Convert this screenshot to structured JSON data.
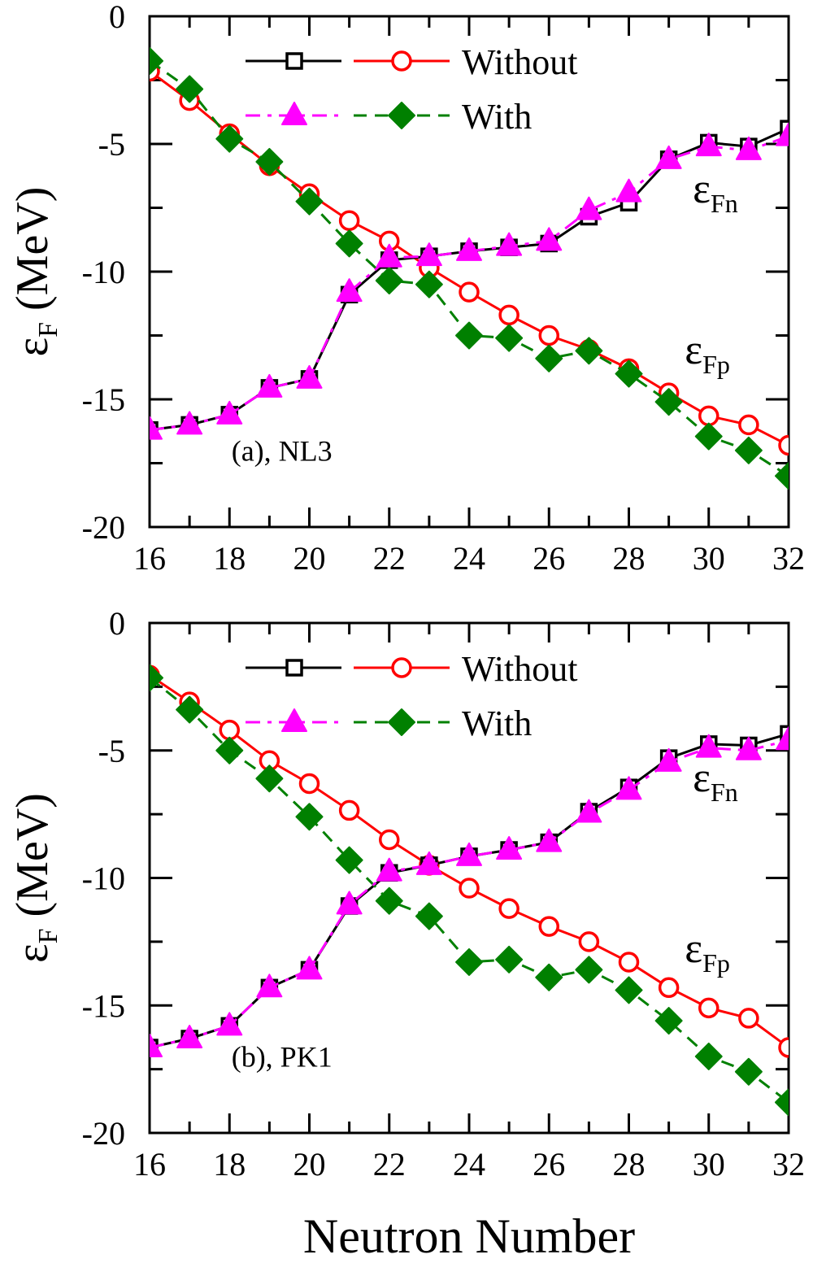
{
  "chart_data": [
    {
      "type": "line",
      "panel_label": "(a), NL3",
      "xlabel": "Neutron Number",
      "ylabel_main": "ε",
      "ylabel_sub": "F",
      "ylabel_unit": " (MeV)",
      "xlim": [
        16,
        32
      ],
      "ylim": [
        -20,
        0
      ],
      "xticks": [
        16,
        18,
        20,
        22,
        24,
        26,
        28,
        30,
        32
      ],
      "yticks": [
        0,
        -5,
        -10,
        -15,
        -20
      ],
      "grid": false,
      "legend_position": "top-right",
      "legend": [
        {
          "label": "Without",
          "series": [
            "eFn_without",
            "eFp_without"
          ]
        },
        {
          "label": "With",
          "series": [
            "eFn_with",
            "eFp_with"
          ]
        }
      ],
      "annotations": [
        {
          "main": "ε",
          "sub": "Fn",
          "x": 29.6,
          "y": -7.3
        },
        {
          "main": "ε",
          "sub": "Fp",
          "x": 29.4,
          "y": -13.6
        }
      ],
      "x": [
        16,
        17,
        18,
        19,
        20,
        21,
        22,
        23,
        24,
        25,
        26,
        27,
        28,
        29,
        30,
        31,
        32
      ],
      "series": [
        {
          "id": "eFn_without",
          "name": "εFn Without",
          "color": "#000000",
          "marker": "square",
          "line": "solid",
          "values": [
            -16.2,
            -16.0,
            -15.6,
            -14.55,
            -14.2,
            -10.9,
            -9.55,
            -9.4,
            -9.2,
            -9.05,
            -8.9,
            -7.85,
            -7.3,
            -5.6,
            -4.95,
            -5.1,
            -4.4
          ]
        },
        {
          "id": "eFp_without",
          "name": "εFp Without",
          "color": "#ff0000",
          "marker": "circle-open",
          "line": "solid",
          "values": [
            -2.15,
            -3.3,
            -4.6,
            -5.85,
            -6.95,
            -8.0,
            -8.8,
            -9.85,
            -10.8,
            -11.7,
            -12.5,
            -13.05,
            -13.8,
            -14.75,
            -15.65,
            -16.0,
            -16.8
          ]
        },
        {
          "id": "eFn_with",
          "name": "εFn With",
          "color": "#ff00ff",
          "marker": "triangle",
          "line": "dashdot",
          "values": [
            -16.2,
            -16.0,
            -15.6,
            -14.55,
            -14.2,
            -10.8,
            -9.45,
            -9.4,
            -9.2,
            -9.0,
            -8.8,
            -7.6,
            -6.9,
            -5.6,
            -5.1,
            -5.25,
            -4.7
          ]
        },
        {
          "id": "eFp_with",
          "name": "εFp With",
          "color": "#008000",
          "marker": "diamond",
          "line": "dashed",
          "values": [
            -1.75,
            -2.85,
            -4.8,
            -5.7,
            -7.25,
            -8.9,
            -10.35,
            -10.5,
            -12.5,
            -12.6,
            -13.4,
            -13.1,
            -14.0,
            -15.1,
            -16.45,
            -17.0,
            -18.0
          ]
        }
      ]
    },
    {
      "type": "line",
      "panel_label": "(b), PK1",
      "xlabel": "Neutron Number",
      "ylabel_main": "ε",
      "ylabel_sub": "F",
      "ylabel_unit": " (MeV)",
      "xlim": [
        16,
        32
      ],
      "ylim": [
        -20,
        0
      ],
      "xticks": [
        16,
        18,
        20,
        22,
        24,
        26,
        28,
        30,
        32
      ],
      "yticks": [
        0,
        -5,
        -10,
        -15,
        -20
      ],
      "grid": false,
      "legend_position": "top-right",
      "legend": [
        {
          "label": "Without",
          "series": [
            "eFn_without",
            "eFp_without"
          ]
        },
        {
          "label": "With",
          "series": [
            "eFn_with",
            "eFp_with"
          ]
        }
      ],
      "annotations": [
        {
          "main": "ε",
          "sub": "Fn",
          "x": 29.6,
          "y": -6.6
        },
        {
          "main": "ε",
          "sub": "Fp",
          "x": 29.4,
          "y": -13.3
        }
      ],
      "x": [
        16,
        17,
        18,
        19,
        20,
        21,
        22,
        23,
        24,
        25,
        26,
        27,
        28,
        29,
        30,
        31,
        32
      ],
      "series": [
        {
          "id": "eFn_without",
          "name": "εFn Without",
          "color": "#000000",
          "marker": "square",
          "line": "solid",
          "values": [
            -16.65,
            -16.3,
            -15.8,
            -14.3,
            -13.6,
            -11.1,
            -9.8,
            -9.5,
            -9.15,
            -8.9,
            -8.6,
            -7.4,
            -6.45,
            -5.3,
            -4.75,
            -4.8,
            -4.35
          ]
        },
        {
          "id": "eFp_without",
          "name": "εFp Without",
          "color": "#ff0000",
          "marker": "circle-open",
          "line": "solid",
          "values": [
            -2.05,
            -3.1,
            -4.2,
            -5.4,
            -6.3,
            -7.35,
            -8.5,
            -9.5,
            -10.4,
            -11.2,
            -11.9,
            -12.5,
            -13.3,
            -14.3,
            -15.1,
            -15.5,
            -16.65
          ]
        },
        {
          "id": "eFn_with",
          "name": "εFn With",
          "color": "#ff00ff",
          "marker": "triangle",
          "line": "dashdot",
          "values": [
            -16.65,
            -16.3,
            -15.8,
            -14.3,
            -13.6,
            -11.05,
            -9.75,
            -9.5,
            -9.15,
            -8.9,
            -8.6,
            -7.45,
            -6.55,
            -5.45,
            -4.9,
            -5.0,
            -4.6
          ]
        },
        {
          "id": "eFp_with",
          "name": "εFp With",
          "color": "#008000",
          "marker": "diamond",
          "line": "dashed",
          "values": [
            -2.15,
            -3.4,
            -5.0,
            -6.1,
            -7.6,
            -9.3,
            -10.9,
            -11.5,
            -13.3,
            -13.2,
            -13.9,
            -13.6,
            -14.4,
            -15.6,
            -17.0,
            -17.6,
            -18.8
          ]
        }
      ]
    }
  ]
}
